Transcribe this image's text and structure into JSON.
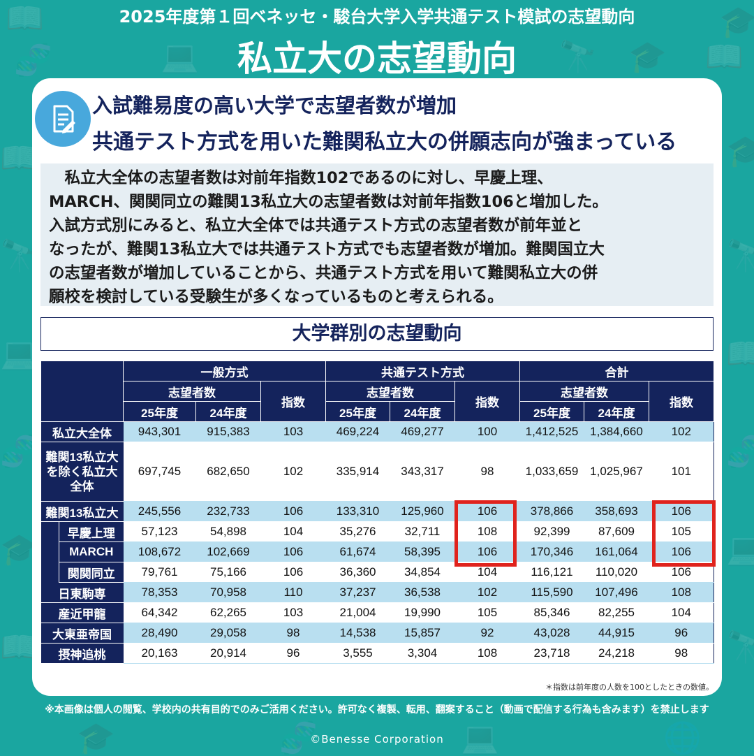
{
  "header": {
    "subtitle": "2025年度第１回ベネッセ・駿台大学入学共通テスト模試の志望動向",
    "title": "私立大の志望動向"
  },
  "headlines": {
    "line1": "入試難易度の高い大学で志望者数が増加",
    "line2": "共通テスト方式を用いた難関私立大の併願志向が強まっている"
  },
  "body_lines": [
    "　私立大全体の志望者数は対前年指数102であるのに対し、早慶上理、",
    "MARCH、関関同立の難関13私立大の志望者数は対前年指数106と増加した。",
    "入試方式別にみると、私立大全体では共通テスト方式の志望者数が前年並と",
    "なったが、難関13私立大では共通テスト方式でも志望者数が増加。難関国立大",
    "の志望者数が増加していることから、共通テスト方式を用いて難関私立大の併",
    "願校を検討している受験生が多くなっているものと考えられる。"
  ],
  "section_title": "大学群別の志望動向",
  "table": {
    "groups": [
      "一般方式",
      "共通テスト方式",
      "合計"
    ],
    "applicants": "志望者数",
    "index": "指数",
    "year25": "25年度",
    "year24": "24年度",
    "rows": [
      {
        "label": "私立大全体",
        "vals": [
          "943,301",
          "915,383",
          "103",
          "469,224",
          "469,277",
          "100",
          "1,412,525",
          "1,384,660",
          "102"
        ]
      },
      {
        "label": "難関13私立大を除く私立大全体",
        "vals": [
          "697,745",
          "682,650",
          "102",
          "335,914",
          "343,317",
          "98",
          "1,033,659",
          "1,025,967",
          "101"
        ]
      },
      {
        "label": "難関13私立大",
        "vals": [
          "245,556",
          "232,733",
          "106",
          "133,310",
          "125,960",
          "106",
          "378,866",
          "358,693",
          "106"
        ]
      },
      {
        "label": "早慶上理",
        "vals": [
          "57,123",
          "54,898",
          "104",
          "35,276",
          "32,711",
          "108",
          "92,399",
          "87,609",
          "105"
        ]
      },
      {
        "label": "MARCH",
        "vals": [
          "108,672",
          "102,669",
          "106",
          "61,674",
          "58,395",
          "106",
          "170,346",
          "161,064",
          "106"
        ]
      },
      {
        "label": "関関同立",
        "vals": [
          "79,761",
          "75,166",
          "106",
          "36,360",
          "34,854",
          "104",
          "116,121",
          "110,020",
          "106"
        ]
      },
      {
        "label": "日東駒専",
        "vals": [
          "78,353",
          "70,958",
          "110",
          "37,237",
          "36,538",
          "102",
          "115,590",
          "107,496",
          "108"
        ]
      },
      {
        "label": "産近甲龍",
        "vals": [
          "64,342",
          "62,265",
          "103",
          "21,004",
          "19,990",
          "105",
          "85,346",
          "82,255",
          "104"
        ]
      },
      {
        "label": "大東亜帝国",
        "vals": [
          "28,490",
          "29,058",
          "98",
          "14,538",
          "15,857",
          "92",
          "43,028",
          "44,915",
          "96"
        ]
      },
      {
        "label": "摂神追桃",
        "vals": [
          "20,163",
          "20,914",
          "96",
          "3,555",
          "3,304",
          "108",
          "23,718",
          "24,218",
          "98"
        ]
      }
    ]
  },
  "footnote": "＊指数は前年度の人数を100としたときの数値。",
  "disclaimer": "※本画像は個人の閲覧、学校内の共有目的でのみご活用ください。許可なく複製、転用、翻案すること（動画で配信する行為も含みます）を禁止します",
  "copyright": "©Benesse Corporation",
  "colors": {
    "background": "#1aa6a0",
    "navy": "#14235c",
    "light_blue": "#b9dff0",
    "highlight": "#e0231d",
    "badge": "#48a8dc"
  },
  "icons": [
    "document-pen-icon",
    "background-pattern-icons"
  ]
}
